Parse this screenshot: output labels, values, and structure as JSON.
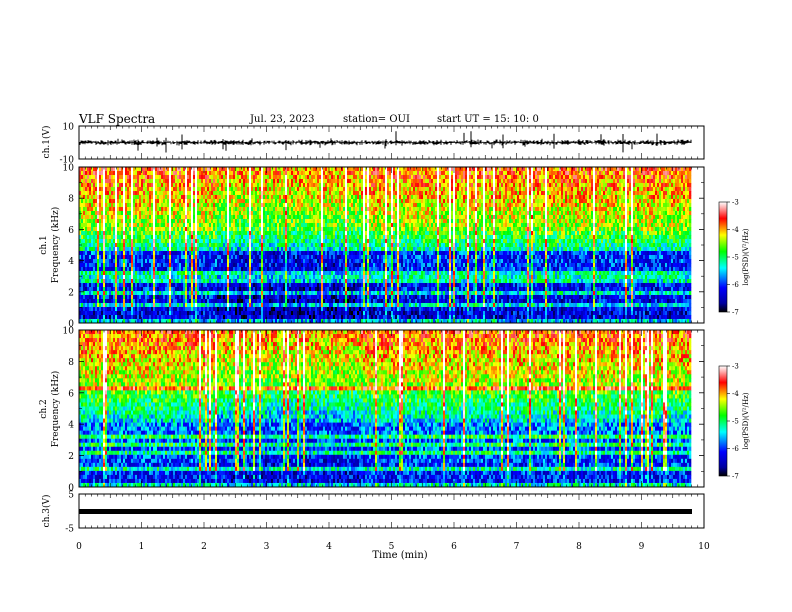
{
  "header": {
    "title": "VLF Spectra",
    "date": "Jul. 23, 2023",
    "station": "station= OUI",
    "start": "start  UT =  15: 10: 0"
  },
  "chart_data": [
    {
      "type": "line",
      "panel": "ch1-waveform",
      "ylabel": "ch.1(V)",
      "ylim": [
        -10,
        10
      ],
      "yticks": [
        "10",
        "-10"
      ],
      "baseline": 0,
      "note_values_approx": "noisy waveform around 0 V with short spikes"
    },
    {
      "type": "heatmap",
      "panel": "ch1-spectrogram",
      "ylabel": "ch.1\nFrequency  (kHz)",
      "ylim": [
        0,
        10
      ],
      "yticks": [
        "0",
        "2",
        "4",
        "6",
        "8",
        "10"
      ],
      "xlim": [
        0,
        10
      ],
      "colorbar": {
        "label": "log(PSD)(V²/Hz)",
        "ticks": [
          "-3",
          "-4",
          "-5",
          "-6",
          "-7"
        ],
        "range": [
          -7,
          -3
        ]
      },
      "bands_khz": [
        0.2,
        1.2,
        2.0,
        2.6,
        3.0,
        3.3
      ]
    },
    {
      "type": "heatmap",
      "panel": "ch2-spectrogram",
      "ylabel": "ch.2\nFrequency  (kHz)",
      "ylim": [
        0,
        10
      ],
      "yticks": [
        "0",
        "2",
        "4",
        "6",
        "8",
        "10"
      ],
      "xlim": [
        0,
        10
      ],
      "colorbar": {
        "label": "log(PSD)(V²/Hz)",
        "ticks": [
          "-3",
          "-4",
          "-5",
          "-6",
          "-7"
        ],
        "range": [
          -7,
          -3
        ]
      },
      "bands_khz": [
        0.2,
        1.2,
        2.2,
        2.6,
        3.1,
        6.3
      ]
    },
    {
      "type": "line",
      "panel": "ch3-waveform",
      "ylabel": "ch.3(V)",
      "ylim": [
        -5,
        5
      ],
      "yticks": [
        "5",
        "-5"
      ],
      "value": 0,
      "xlabel": "Time  (min)",
      "xticks": [
        "0",
        "1",
        "2",
        "3",
        "4",
        "5",
        "6",
        "7",
        "8",
        "9",
        "10"
      ],
      "data_end_min": 9.8
    }
  ],
  "colors": {
    "colormap": [
      "#000080",
      "#0000ff",
      "#00ffff",
      "#00ff00",
      "#ffff00",
      "#ff0000",
      "#ffffff"
    ],
    "axis": "#000000",
    "waveform": "#000000"
  }
}
